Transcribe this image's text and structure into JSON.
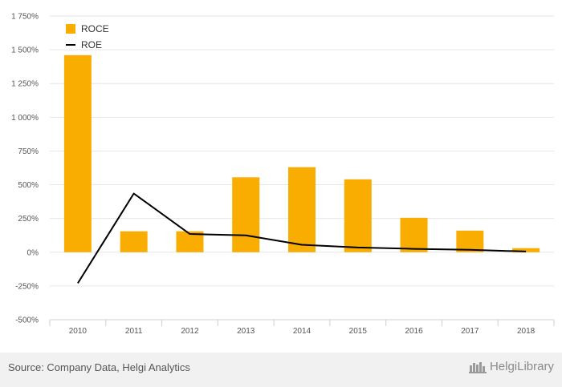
{
  "chart_data": {
    "type": "bar",
    "categories": [
      "2010",
      "2011",
      "2012",
      "2013",
      "2014",
      "2015",
      "2016",
      "2017",
      "2018"
    ],
    "series": [
      {
        "name": "ROCE",
        "kind": "bar",
        "color": "#f9ad00",
        "values": [
          1460,
          155,
          155,
          555,
          630,
          540,
          255,
          160,
          30
        ]
      },
      {
        "name": "ROE",
        "kind": "line",
        "color": "#000000",
        "values": [
          -230,
          435,
          135,
          125,
          55,
          35,
          25,
          18,
          5
        ]
      }
    ],
    "yticks": [
      -500,
      -250,
      0,
      250,
      500,
      750,
      1000,
      1250,
      1500,
      1750
    ],
    "ytick_labels": [
      "-500%",
      "-250%",
      "0%",
      "250%",
      "500%",
      "750%",
      "1 000%",
      "1 250%",
      "1 500%",
      "1 750%"
    ],
    "ylim": [
      -500,
      1750
    ],
    "grid": true,
    "legend_position": "top-left"
  },
  "footer": {
    "source": "Source: Company Data, Helgi Analytics",
    "brand": "HelgiLibrary"
  }
}
